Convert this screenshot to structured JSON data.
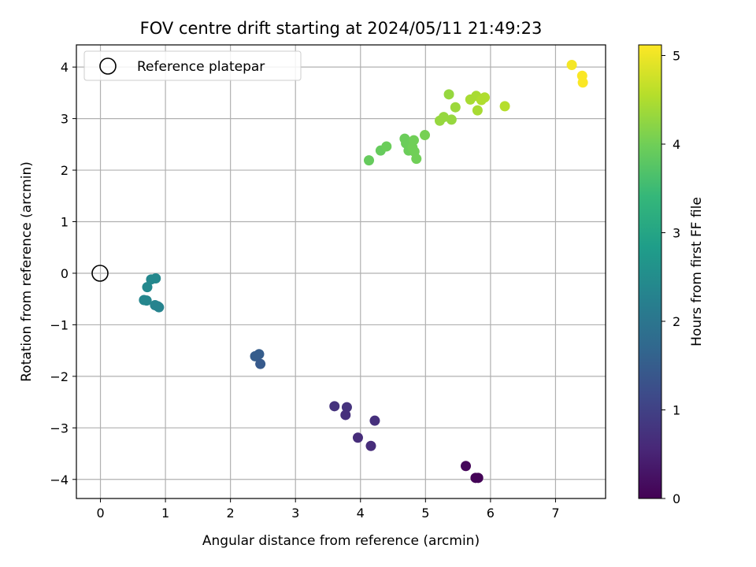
{
  "chart_data": {
    "type": "scatter",
    "title": "FOV centre drift starting at 2024/05/11 21:49:23",
    "xlabel": "Angular distance from reference (arcmin)",
    "ylabel": "Rotation from reference (arcmin)",
    "xlim": [
      -0.37,
      7.77
    ],
    "ylim": [
      -4.37,
      4.43
    ],
    "xticks": [
      0,
      1,
      2,
      3,
      4,
      5,
      6,
      7
    ],
    "yticks": [
      -4,
      -3,
      -2,
      -1,
      0,
      1,
      2,
      3,
      4
    ],
    "xtick_labels": [
      "0",
      "1",
      "2",
      "3",
      "4",
      "5",
      "6",
      "7"
    ],
    "ytick_labels": [
      "−4",
      "−3",
      "−2",
      "−1",
      "0",
      "1",
      "2",
      "3",
      "4"
    ],
    "grid": true,
    "legend": {
      "position": "top-left",
      "label": "Reference platepar",
      "marker": "hollow-circle"
    },
    "reference_point": {
      "x": 0,
      "y": 0
    },
    "colorbar": {
      "label": "Hours from first FF file",
      "colormap": "viridis",
      "range": [
        0,
        5.12
      ],
      "ticks": [
        0,
        1,
        2,
        3,
        4,
        5
      ],
      "tick_labels": [
        "0",
        "1",
        "2",
        "3",
        "4",
        "5"
      ]
    },
    "colormap_stops": [
      "#440154",
      "#482878",
      "#3e4989",
      "#31688e",
      "#26828e",
      "#1f9e89",
      "#35b779",
      "#6ece58",
      "#b5de2b",
      "#fde725"
    ],
    "points": [
      {
        "x": 5.62,
        "y": -3.74,
        "hours": 0.1
      },
      {
        "x": 5.77,
        "y": -3.97,
        "hours": 0.05
      },
      {
        "x": 5.81,
        "y": -3.97,
        "hours": 0.05
      },
      {
        "x": 3.6,
        "y": -2.58,
        "hours": 0.75
      },
      {
        "x": 3.79,
        "y": -2.6,
        "hours": 0.75
      },
      {
        "x": 3.77,
        "y": -2.75,
        "hours": 0.7
      },
      {
        "x": 4.22,
        "y": -2.86,
        "hours": 0.7
      },
      {
        "x": 3.96,
        "y": -3.19,
        "hours": 0.65
      },
      {
        "x": 4.16,
        "y": -3.35,
        "hours": 0.65
      },
      {
        "x": 2.38,
        "y": -1.61,
        "hours": 1.5
      },
      {
        "x": 2.44,
        "y": -1.57,
        "hours": 1.5
      },
      {
        "x": 2.46,
        "y": -1.76,
        "hours": 1.45
      },
      {
        "x": 0.78,
        "y": -0.12,
        "hours": 2.4
      },
      {
        "x": 0.85,
        "y": -0.1,
        "hours": 2.4
      },
      {
        "x": 0.72,
        "y": -0.27,
        "hours": 2.4
      },
      {
        "x": 0.67,
        "y": -0.52,
        "hours": 2.35
      },
      {
        "x": 0.71,
        "y": -0.53,
        "hours": 2.35
      },
      {
        "x": 0.84,
        "y": -0.62,
        "hours": 2.3
      },
      {
        "x": 0.9,
        "y": -0.66,
        "hours": 2.3
      },
      {
        "x": 0.88,
        "y": -0.64,
        "hours": 2.3
      },
      {
        "x": 4.13,
        "y": 2.19,
        "hours": 3.9
      },
      {
        "x": 4.31,
        "y": 2.38,
        "hours": 3.9
      },
      {
        "x": 4.4,
        "y": 2.46,
        "hours": 3.95
      },
      {
        "x": 4.68,
        "y": 2.61,
        "hours": 3.95
      },
      {
        "x": 4.7,
        "y": 2.52,
        "hours": 3.95
      },
      {
        "x": 4.74,
        "y": 2.38,
        "hours": 3.95
      },
      {
        "x": 4.78,
        "y": 2.53,
        "hours": 3.95
      },
      {
        "x": 4.8,
        "y": 2.44,
        "hours": 4.0
      },
      {
        "x": 4.82,
        "y": 2.58,
        "hours": 4.0
      },
      {
        "x": 4.83,
        "y": 2.36,
        "hours": 4.0
      },
      {
        "x": 4.86,
        "y": 2.22,
        "hours": 4.0
      },
      {
        "x": 4.99,
        "y": 2.68,
        "hours": 4.05
      },
      {
        "x": 5.22,
        "y": 2.96,
        "hours": 4.3
      },
      {
        "x": 5.28,
        "y": 3.03,
        "hours": 4.3
      },
      {
        "x": 5.36,
        "y": 3.47,
        "hours": 4.3
      },
      {
        "x": 5.4,
        "y": 2.98,
        "hours": 4.3
      },
      {
        "x": 5.46,
        "y": 3.22,
        "hours": 4.35
      },
      {
        "x": 5.69,
        "y": 3.37,
        "hours": 4.45
      },
      {
        "x": 5.78,
        "y": 3.44,
        "hours": 4.45
      },
      {
        "x": 5.8,
        "y": 3.16,
        "hours": 4.45
      },
      {
        "x": 5.86,
        "y": 3.36,
        "hours": 4.5
      },
      {
        "x": 5.91,
        "y": 3.41,
        "hours": 4.5
      },
      {
        "x": 6.22,
        "y": 3.24,
        "hours": 4.55
      },
      {
        "x": 7.25,
        "y": 4.04,
        "hours": 5.05
      },
      {
        "x": 7.41,
        "y": 3.83,
        "hours": 5.1
      },
      {
        "x": 7.42,
        "y": 3.7,
        "hours": 5.1
      }
    ]
  }
}
